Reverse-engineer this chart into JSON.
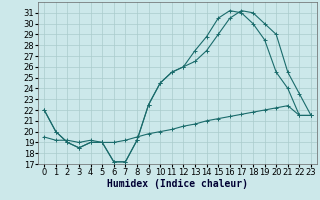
{
  "xlabel": "Humidex (Indice chaleur)",
  "bg_color": "#cce8ea",
  "grid_color": "#aacccc",
  "line_color": "#1a6b6b",
  "xlim": [
    -0.5,
    23.5
  ],
  "ylim": [
    17,
    32
  ],
  "xticks": [
    0,
    1,
    2,
    3,
    4,
    5,
    6,
    7,
    8,
    9,
    10,
    11,
    12,
    13,
    14,
    15,
    16,
    17,
    18,
    19,
    20,
    21,
    22,
    23
  ],
  "yticks": [
    17,
    18,
    19,
    20,
    21,
    22,
    23,
    24,
    25,
    26,
    27,
    28,
    29,
    30,
    31
  ],
  "line1_x": [
    0,
    1,
    2,
    3,
    4,
    5,
    6,
    7,
    8,
    9,
    10,
    11,
    12,
    13,
    14,
    15,
    16,
    17,
    18,
    19,
    20,
    21,
    22,
    23
  ],
  "line1_y": [
    22.0,
    20.0,
    19.0,
    18.5,
    19.0,
    19.0,
    17.2,
    17.2,
    19.2,
    22.5,
    24.5,
    25.5,
    26.0,
    27.5,
    28.8,
    30.5,
    31.2,
    31.0,
    30.0,
    28.5,
    25.5,
    24.0,
    21.5,
    21.5
  ],
  "line2_x": [
    0,
    1,
    2,
    3,
    4,
    5,
    6,
    7,
    8,
    9,
    10,
    11,
    12,
    13,
    14,
    15,
    16,
    17,
    18,
    19,
    20,
    21,
    22,
    23
  ],
  "line2_y": [
    22.0,
    20.0,
    19.0,
    18.5,
    19.0,
    19.0,
    17.2,
    17.2,
    19.2,
    22.5,
    24.5,
    25.5,
    26.0,
    26.5,
    27.5,
    29.0,
    30.5,
    31.2,
    31.0,
    30.0,
    29.0,
    25.5,
    23.5,
    21.5
  ],
  "line3_x": [
    0,
    1,
    2,
    3,
    4,
    5,
    6,
    7,
    8,
    9,
    10,
    11,
    12,
    13,
    14,
    15,
    16,
    17,
    18,
    19,
    20,
    21,
    22,
    23
  ],
  "line3_y": [
    19.5,
    19.2,
    19.2,
    19.0,
    19.2,
    19.0,
    19.0,
    19.2,
    19.5,
    19.8,
    20.0,
    20.2,
    20.5,
    20.7,
    21.0,
    21.2,
    21.4,
    21.6,
    21.8,
    22.0,
    22.2,
    22.4,
    21.5,
    21.5
  ],
  "xlabel_fontsize": 7,
  "tick_fontsize": 6
}
